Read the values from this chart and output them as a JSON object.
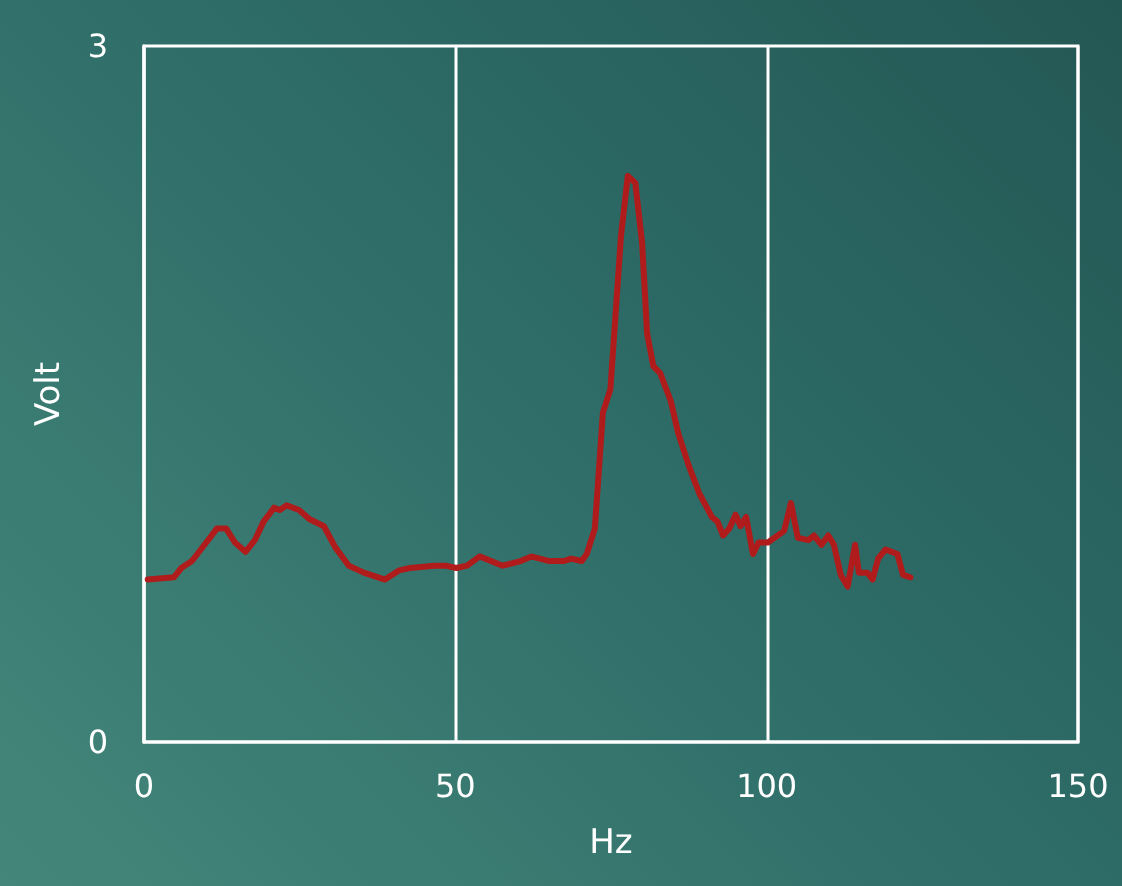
{
  "chart_data": {
    "type": "line",
    "xlabel": "Hz",
    "ylabel": "Volt",
    "xlim": [
      0,
      150
    ],
    "xticks": [
      0,
      50,
      100,
      150
    ],
    "ylim": [
      0,
      3
    ],
    "yticks": [
      0,
      3
    ],
    "grid": "x",
    "marker": "none",
    "line_style": "solid",
    "series": [
      {
        "color": "#b01c1c",
        "x": [
          0.6,
          4.8,
          6.0,
          7.7,
          10.0,
          11.7,
          13.2,
          14.6,
          16.3,
          17.8,
          19.2,
          20.9,
          21.8,
          22.9,
          24.9,
          26.6,
          28.9,
          30.7,
          32.9,
          35.3,
          38.7,
          41.0,
          42.7,
          46.7,
          48.4,
          50.2,
          51.9,
          53.9,
          57.6,
          60.5,
          62.2,
          65.1,
          67.4,
          68.6,
          70.3,
          71.1,
          72.4,
          73.7,
          74.9,
          76.6,
          77.7,
          78.9,
          80.0,
          80.8,
          81.8,
          82.9,
          84.6,
          85.8,
          87.5,
          89.2,
          90.4,
          91.2,
          92.1,
          93.0,
          94.0,
          95.0,
          95.8,
          96.7,
          97.8,
          98.7,
          100.2,
          102.8,
          103.9,
          105.0,
          106.7,
          107.6,
          108.8,
          109.9,
          110.8,
          111.9,
          113.0,
          114.2,
          114.8,
          116.2,
          117.0,
          117.9,
          119.1,
          121.0,
          121.9,
          123.1
        ],
        "values": [
          0.7,
          0.71,
          0.75,
          0.78,
          0.86,
          0.92,
          0.92,
          0.86,
          0.82,
          0.87,
          0.95,
          1.01,
          1.0,
          1.02,
          1.0,
          0.96,
          0.93,
          0.84,
          0.76,
          0.73,
          0.7,
          0.74,
          0.75,
          0.76,
          0.76,
          0.75,
          0.76,
          0.8,
          0.76,
          0.78,
          0.8,
          0.78,
          0.78,
          0.79,
          0.78,
          0.81,
          0.92,
          1.42,
          1.52,
          2.18,
          2.44,
          2.41,
          2.15,
          1.76,
          1.62,
          1.59,
          1.47,
          1.33,
          1.19,
          1.07,
          1.01,
          0.97,
          0.95,
          0.89,
          0.92,
          0.98,
          0.93,
          0.97,
          0.81,
          0.86,
          0.86,
          0.91,
          1.03,
          0.88,
          0.87,
          0.89,
          0.85,
          0.89,
          0.85,
          0.72,
          0.67,
          0.85,
          0.73,
          0.73,
          0.7,
          0.79,
          0.83,
          0.81,
          0.72,
          0.71
        ]
      }
    ]
  }
}
